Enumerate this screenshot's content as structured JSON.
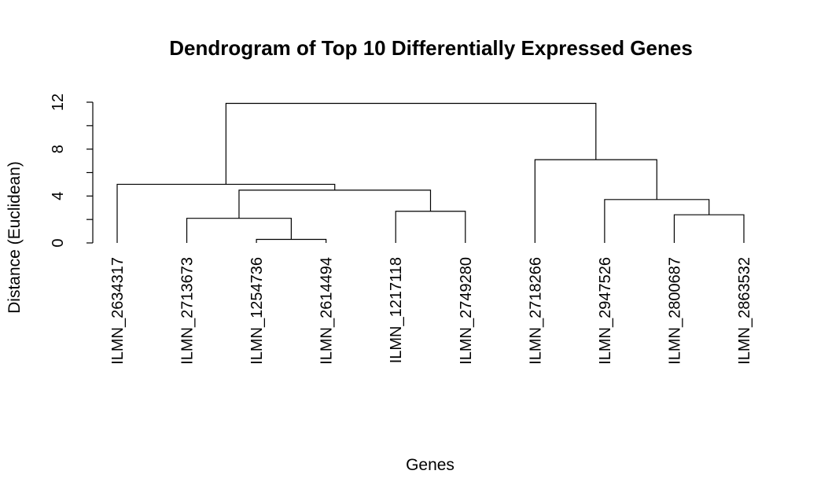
{
  "chart_data": {
    "type": "dendrogram",
    "title": "Dendrogram of Top 10 Differentially Expressed Genes",
    "xlabel": "Genes",
    "ylabel": "Distance (Euclidean)",
    "ylim": [
      0,
      12
    ],
    "y_ticks": [
      0,
      2,
      4,
      6,
      8,
      10,
      12
    ],
    "y_tick_labels": [
      {
        "value": 0,
        "label": "0"
      },
      {
        "value": 4,
        "label": "4"
      },
      {
        "value": 8,
        "label": "8"
      },
      {
        "value": 12,
        "label": "12"
      }
    ],
    "leaves": [
      "ILMN_2634317",
      "ILMN_2713673",
      "ILMN_1254736",
      "ILMN_2614494",
      "ILMN_1217118",
      "ILMN_2749280",
      "ILMN_2718266",
      "ILMN_2947526",
      "ILMN_2800687",
      "ILMN_2863532"
    ],
    "merges": [
      {
        "id": "m1",
        "left": "ILMN_1254736",
        "right": "ILMN_2614494",
        "height": 0.3
      },
      {
        "id": "m2",
        "left": "ILMN_2713673",
        "right": "m1",
        "height": 2.1
      },
      {
        "id": "m3",
        "left": "ILMN_2800687",
        "right": "ILMN_2863532",
        "height": 2.4
      },
      {
        "id": "m4",
        "left": "ILMN_1217118",
        "right": "ILMN_2749280",
        "height": 2.7
      },
      {
        "id": "m5",
        "left": "ILMN_2947526",
        "right": "m3",
        "height": 3.7
      },
      {
        "id": "m6",
        "left": "m2",
        "right": "m4",
        "height": 4.5
      },
      {
        "id": "m7",
        "left": "ILMN_2634317",
        "right": "m6",
        "height": 5.0
      },
      {
        "id": "m8",
        "left": "ILMN_2718266",
        "right": "m5",
        "height": 7.1
      },
      {
        "id": "m9",
        "left": "m7",
        "right": "m8",
        "height": 11.9
      }
    ]
  }
}
